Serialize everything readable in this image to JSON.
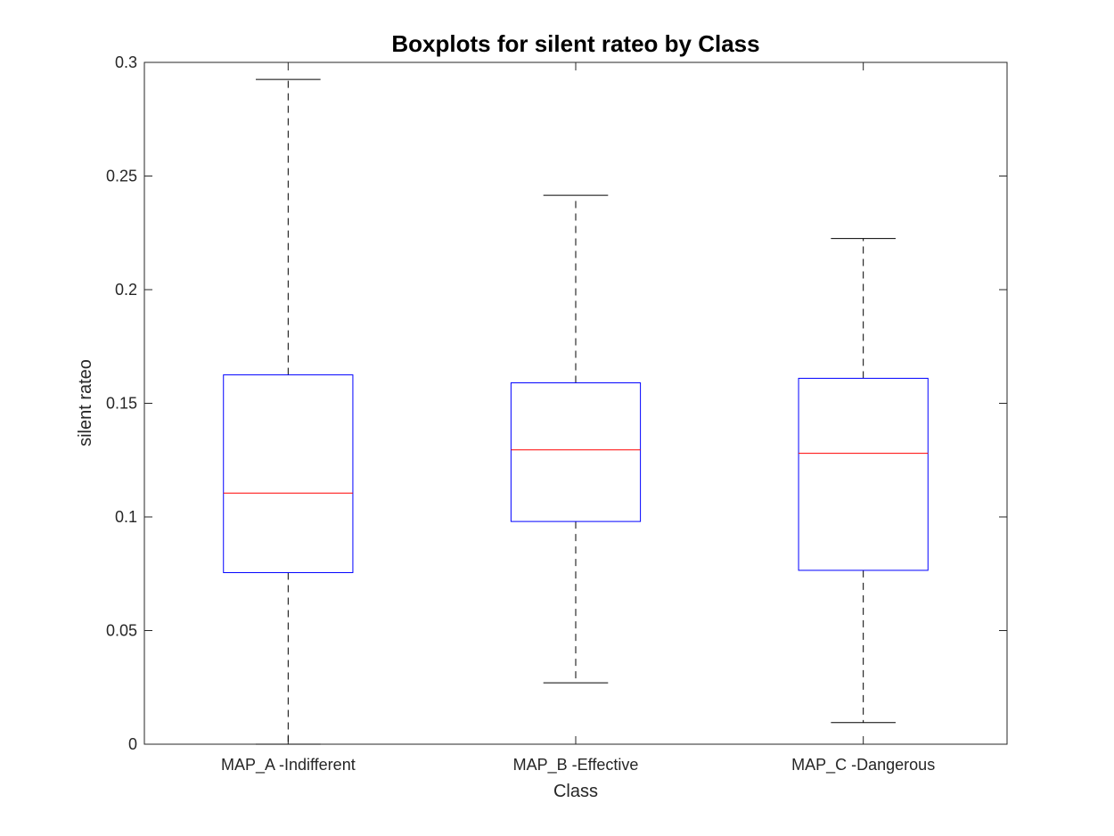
{
  "chart_data": {
    "type": "boxplot",
    "title": "Boxplots for silent rateo by Class",
    "xlabel": "Class",
    "ylabel": "silent rateo",
    "ylim": [
      0,
      0.3
    ],
    "yticks": [
      0,
      0.05,
      0.1,
      0.15,
      0.2,
      0.25,
      0.3
    ],
    "ytick_labels": [
      "0",
      "0.05",
      "0.1",
      "0.15",
      "0.2",
      "0.25",
      "0.3"
    ],
    "grid": false,
    "categories": [
      "MAP_A -Indifferent",
      "MAP_B -Effective",
      "MAP_C -Dangerous"
    ],
    "boxes": [
      {
        "whisker_low": 0.0,
        "q1": 0.0755,
        "median": 0.1105,
        "q3": 0.1625,
        "whisker_high": 0.2925
      },
      {
        "whisker_low": 0.027,
        "q1": 0.098,
        "median": 0.1295,
        "q3": 0.159,
        "whisker_high": 0.2415
      },
      {
        "whisker_low": 0.0095,
        "q1": 0.0765,
        "median": 0.128,
        "q3": 0.161,
        "whisker_high": 0.2225
      }
    ],
    "colors": {
      "box": "#0000ff",
      "median": "#ff0000",
      "whisker": "#000000",
      "axis": "#262626"
    }
  }
}
